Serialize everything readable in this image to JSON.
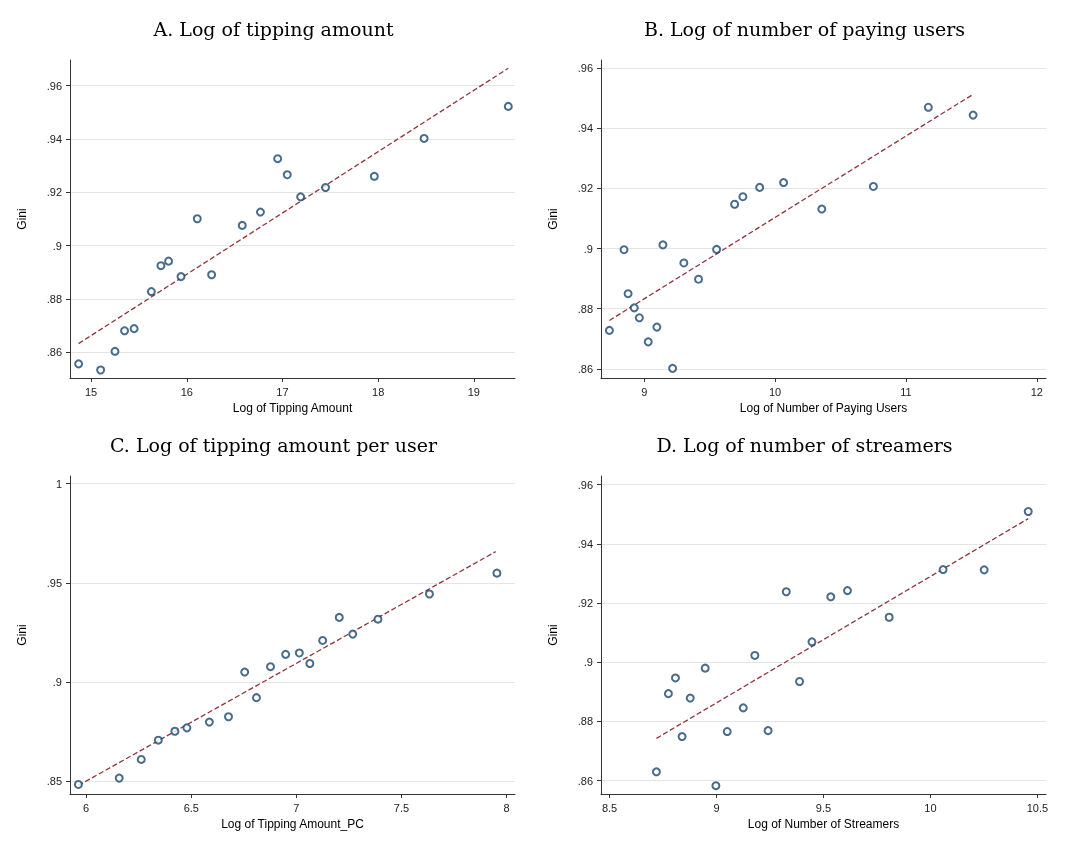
{
  "chart_data": [
    {
      "type": "scatter",
      "title": "A. Log of tipping amount",
      "xlabel": "Log of Tipping Amount",
      "ylabel": "Gini",
      "xlim": [
        14.78,
        19.43
      ],
      "ylim": [
        0.8504,
        0.9696
      ],
      "xticks": [
        15,
        16,
        17,
        18,
        19
      ],
      "yticks": [
        {
          "value": 0.86,
          "label": ".86"
        },
        {
          "value": 0.88,
          "label": ".88"
        },
        {
          "value": 0.9,
          "label": ".9"
        },
        {
          "value": 0.92,
          "label": ".92"
        },
        {
          "value": 0.94,
          "label": ".94"
        },
        {
          "value": 0.96,
          "label": ".96"
        }
      ],
      "grid": "y",
      "series": [
        {
          "marker": "circle",
          "color": "#1a476f",
          "x": [
            14.87,
            15.1,
            15.25,
            15.35,
            15.45,
            15.63,
            15.73,
            15.81,
            15.94,
            16.11,
            16.26,
            16.58,
            16.77,
            16.95,
            17.05,
            17.19,
            17.45,
            17.96,
            18.48,
            19.36
          ],
          "values": [
            0.8557,
            0.8534,
            0.8604,
            0.8681,
            0.8689,
            0.8828,
            0.8925,
            0.8942,
            0.8884,
            0.9101,
            0.8891,
            0.9076,
            0.9126,
            0.9326,
            0.9266,
            0.9183,
            0.9218,
            0.926,
            0.9402,
            0.9522
          ]
        },
        {
          "type": "line",
          "marker": "none",
          "line_style": "dashed",
          "color": "#90353b",
          "x": [
            14.87,
            19.36
          ],
          "values": [
            0.8633,
            0.9665
          ]
        }
      ]
    },
    {
      "type": "scatter",
      "title": "B. Log of number of paying users",
      "xlabel": "Log of Number of Paying Users",
      "ylabel": "Gini",
      "xlim": [
        8.67,
        12.07
      ],
      "ylim": [
        0.857,
        0.9626
      ],
      "xticks": [
        9,
        10,
        11,
        12
      ],
      "yticks": [
        {
          "value": 0.86,
          "label": ".86"
        },
        {
          "value": 0.88,
          "label": ".88"
        },
        {
          "value": 0.9,
          "label": ".9"
        },
        {
          "value": 0.92,
          "label": ".92"
        },
        {
          "value": 0.94,
          "label": ".94"
        },
        {
          "value": 0.96,
          "label": ".96"
        }
      ],
      "grid": "y",
      "series": [
        {
          "marker": "circle",
          "color": "#1a476f",
          "x": [
            8.734,
            8.846,
            8.877,
            8.924,
            8.963,
            9.031,
            9.097,
            9.143,
            9.217,
            9.303,
            9.415,
            9.553,
            9.691,
            9.754,
            9.882,
            10.065,
            10.357,
            10.751,
            11.171,
            11.513
          ],
          "values": [
            0.8728,
            0.8996,
            0.885,
            0.8803,
            0.877,
            0.869,
            0.8739,
            0.9012,
            0.8602,
            0.8952,
            0.8898,
            0.8997,
            0.9147,
            0.9172,
            0.9203,
            0.9219,
            0.9131,
            0.9206,
            0.9469,
            0.9443
          ]
        },
        {
          "type": "line",
          "marker": "none",
          "line_style": "dashed",
          "color": "#90353b",
          "x": [
            8.734,
            11.513
          ],
          "values": [
            0.8761,
            0.9512
          ]
        }
      ]
    },
    {
      "type": "scatter",
      "title": "C. Log of tipping amount per user",
      "xlabel": "Log of Tipping Amount_PC",
      "ylabel": "Gini",
      "xlim": [
        5.923,
        8.04
      ],
      "ylim": [
        0.8437,
        1.0038
      ],
      "xticks": [
        6,
        6.5,
        7,
        7.5,
        8
      ],
      "yticks": [
        {
          "value": 0.85,
          "label": ".85"
        },
        {
          "value": 0.9,
          "label": ".9"
        },
        {
          "value": 0.95,
          "label": ".95"
        },
        1
      ],
      "grid": "y",
      "series": [
        {
          "marker": "circle",
          "color": "#1a476f",
          "x": [
            5.963,
            6.157,
            6.262,
            6.343,
            6.422,
            6.479,
            6.586,
            6.677,
            6.754,
            6.81,
            6.877,
            6.949,
            7.014,
            7.064,
            7.125,
            7.204,
            7.268,
            7.388,
            7.633,
            7.954
          ],
          "values": [
            0.8485,
            0.8517,
            0.8611,
            0.8708,
            0.8753,
            0.877,
            0.8799,
            0.8826,
            0.9051,
            0.8922,
            0.9078,
            0.914,
            0.9147,
            0.9094,
            0.921,
            0.9326,
            0.9242,
            0.9317,
            0.9444,
            0.9549
          ]
        },
        {
          "type": "line",
          "marker": "none",
          "line_style": "dashed",
          "color": "#90353b",
          "x": [
            5.963,
            7.948
          ],
          "values": [
            0.848,
            0.9657
          ]
        }
      ]
    },
    {
      "type": "scatter",
      "title": "D. Log of number of streamers",
      "xlabel": "Log of Number of Streamers",
      "ylabel": "Gini",
      "xlim": [
        8.46,
        10.54
      ],
      "ylim": [
        0.8555,
        0.9629
      ],
      "xticks": [
        8.5,
        9,
        9.5,
        10,
        10.5
      ],
      "yticks": [
        {
          "value": 0.86,
          "label": ".86"
        },
        {
          "value": 0.88,
          "label": ".88"
        },
        {
          "value": 0.9,
          "label": ".9"
        },
        {
          "value": 0.92,
          "label": ".92"
        },
        {
          "value": 0.94,
          "label": ".94"
        },
        {
          "value": 0.96,
          "label": ".96"
        }
      ],
      "grid": "y",
      "series": [
        {
          "marker": "circle",
          "color": "#1a476f",
          "x": [
            8.719,
            8.775,
            8.808,
            8.839,
            8.877,
            8.947,
            8.997,
            9.05,
            9.125,
            9.179,
            9.241,
            9.326,
            9.388,
            9.446,
            9.534,
            9.612,
            9.807,
            10.059,
            10.251,
            10.457
          ],
          "values": [
            0.863,
            0.8894,
            0.8947,
            0.8749,
            0.8879,
            0.898,
            0.8583,
            0.8766,
            0.8846,
            0.9023,
            0.8769,
            0.9238,
            0.8935,
            0.9069,
            0.9221,
            0.9242,
            0.9152,
            0.9313,
            0.9312,
            0.9509
          ]
        },
        {
          "type": "line",
          "marker": "none",
          "line_style": "dashed",
          "color": "#90353b",
          "x": [
            8.719,
            10.457
          ],
          "values": [
            0.8743,
            0.9485
          ]
        }
      ]
    }
  ]
}
